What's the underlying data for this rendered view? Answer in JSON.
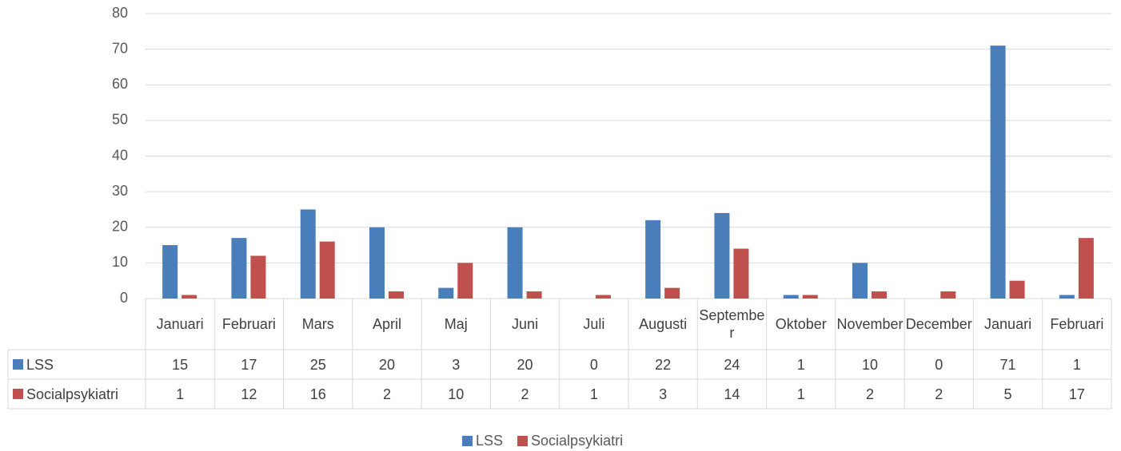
{
  "chart_data": {
    "type": "bar",
    "categories": [
      "Januari",
      "Februari",
      "Mars",
      "April",
      "Maj",
      "Juni",
      "Juli",
      "Augusti",
      "September",
      "Oktober",
      "November",
      "December",
      "Januari",
      "Februari"
    ],
    "series": [
      {
        "name": "LSS",
        "color": "#4a7ebb",
        "values": [
          15,
          17,
          25,
          20,
          3,
          20,
          0,
          22,
          24,
          1,
          10,
          0,
          71,
          1
        ]
      },
      {
        "name": "Socialpsykiatri",
        "color": "#c0504d",
        "values": [
          1,
          12,
          16,
          2,
          10,
          2,
          1,
          3,
          14,
          1,
          2,
          2,
          5,
          17
        ]
      }
    ],
    "ylim": [
      0,
      80
    ],
    "yticks": [
      0,
      10,
      20,
      30,
      40,
      50,
      60,
      70,
      80
    ],
    "grid": true,
    "legend": "bottom"
  }
}
